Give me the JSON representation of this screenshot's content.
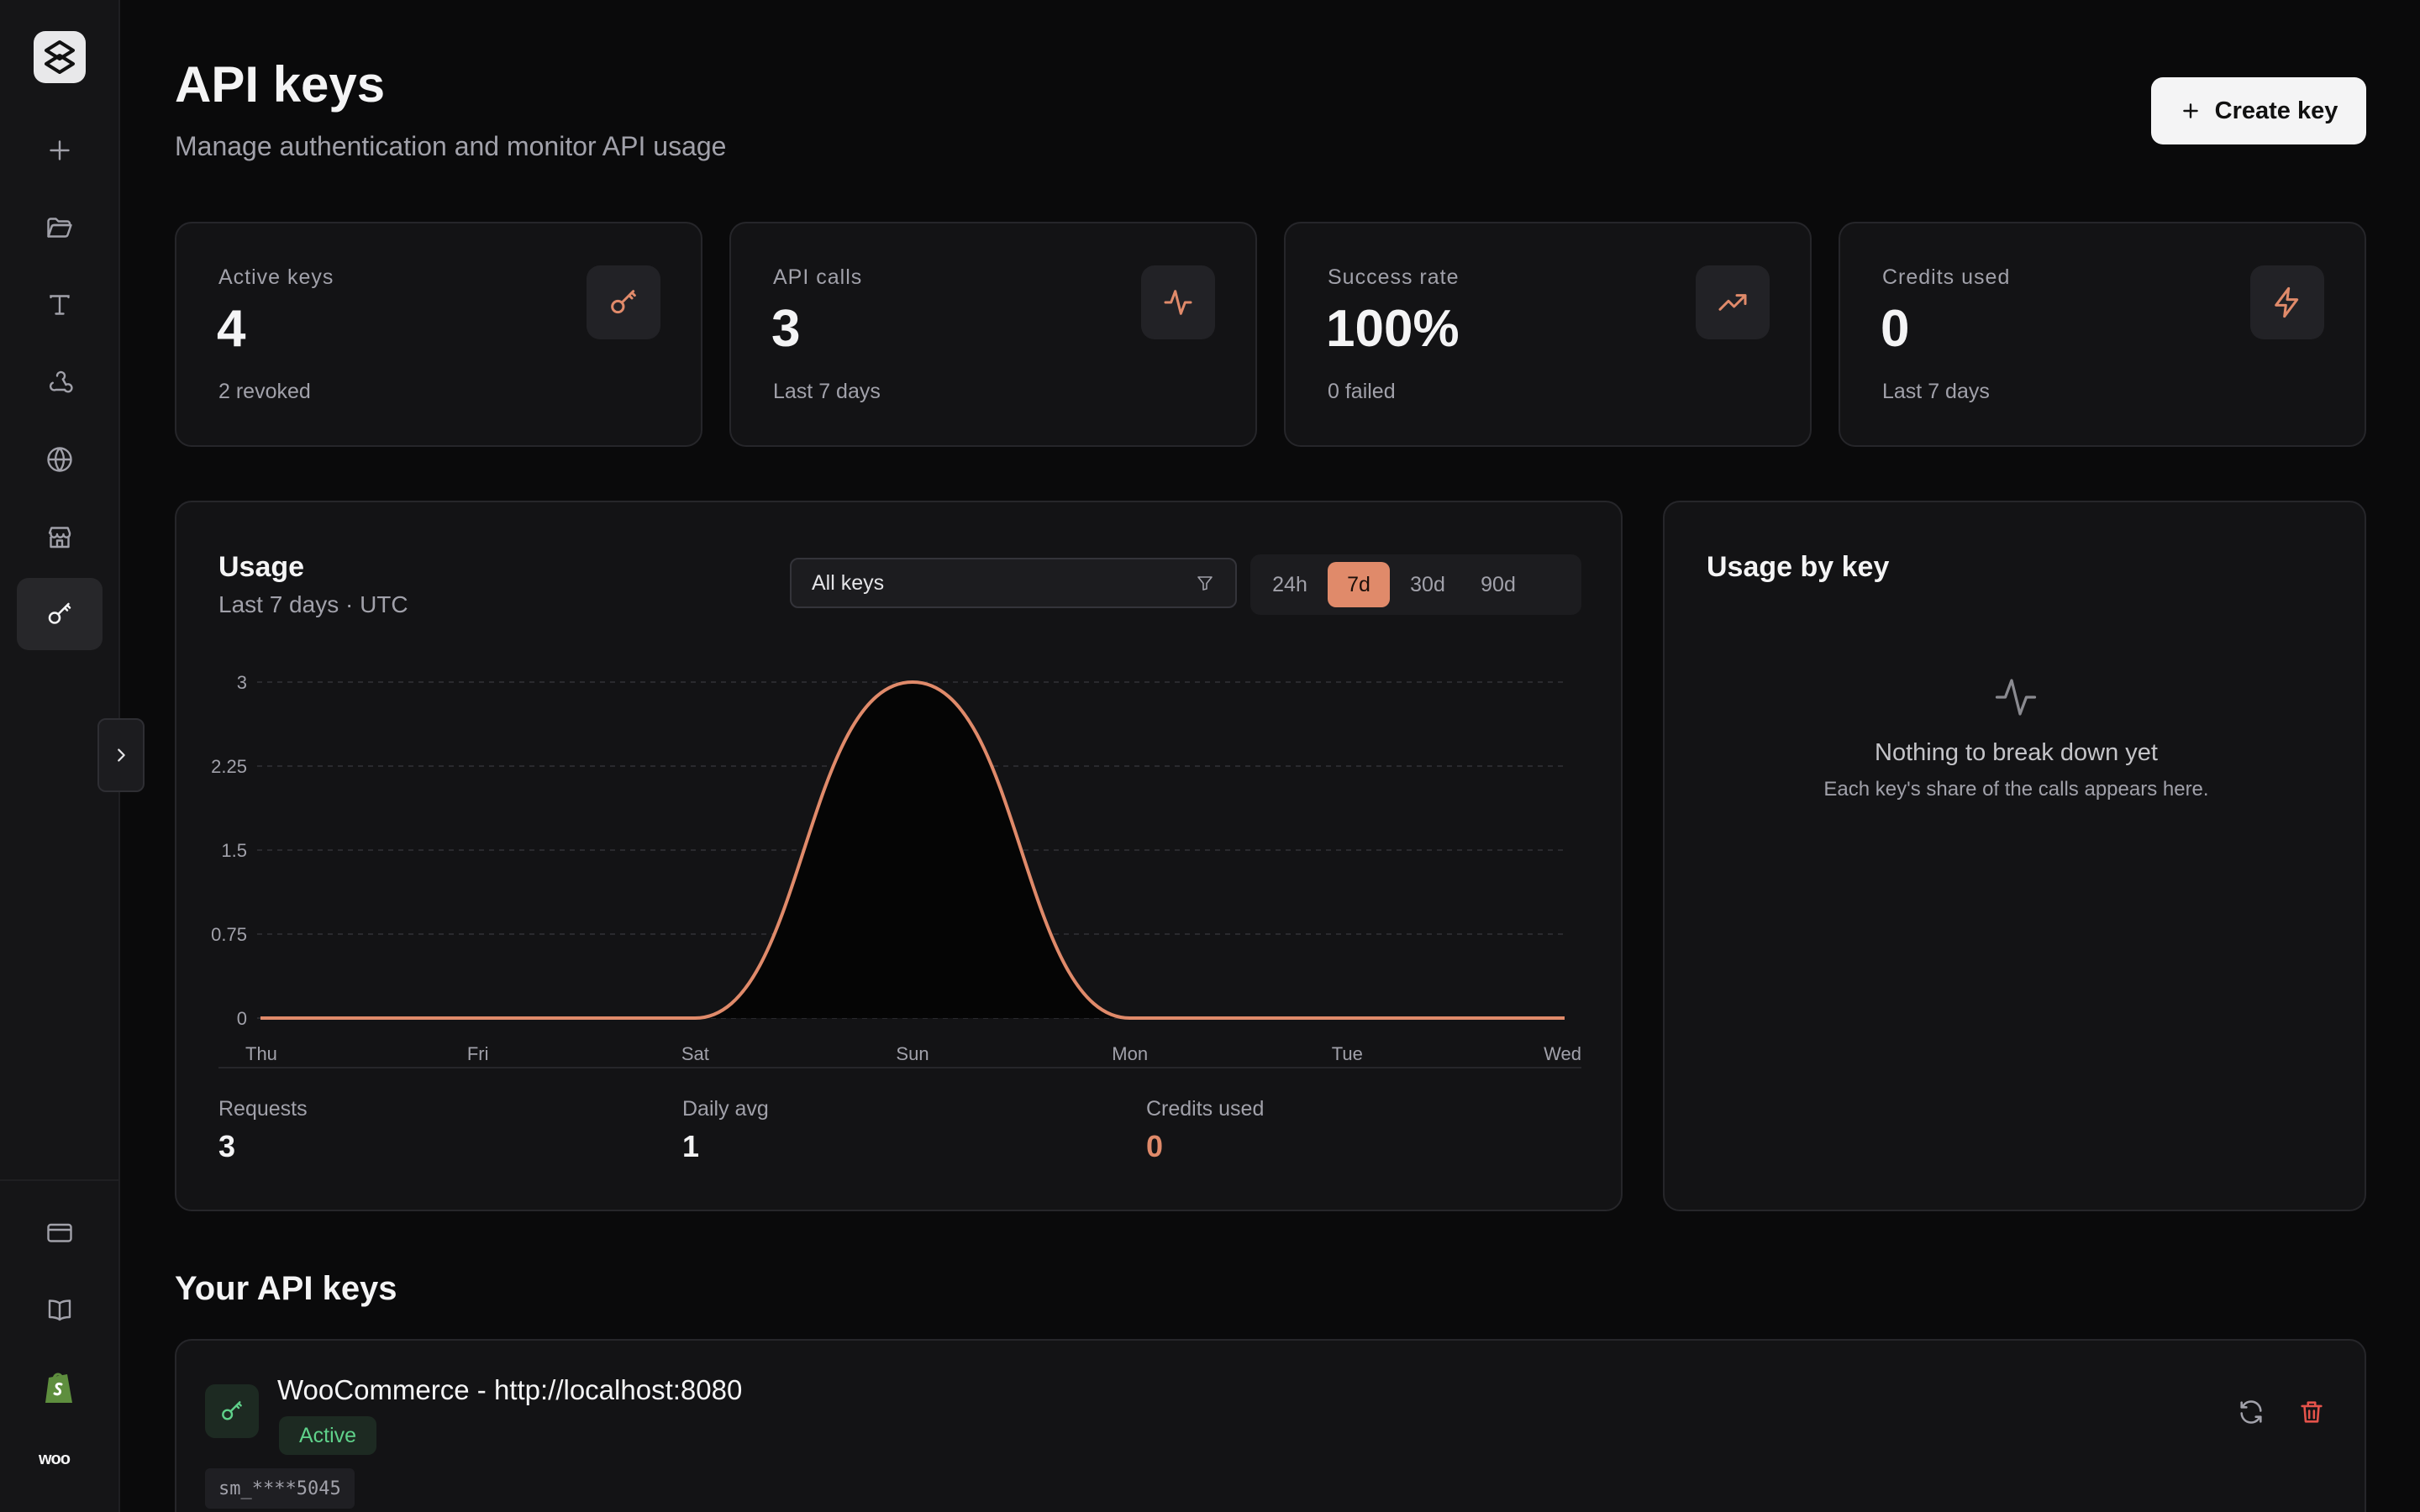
{
  "header": {
    "title": "API keys",
    "subtitle": "Manage authentication and monitor API usage",
    "create_button": "Create key"
  },
  "stats": [
    {
      "label": "Active keys",
      "value": "4",
      "note": "2 revoked",
      "icon": "key-icon"
    },
    {
      "label": "API calls",
      "value": "3",
      "note": "Last 7 days",
      "icon": "activity-icon"
    },
    {
      "label": "Success rate",
      "value": "100%",
      "note": "0 failed",
      "icon": "trending-up-icon"
    },
    {
      "label": "Credits used",
      "value": "0",
      "note": "Last 7 days",
      "icon": "lightning-icon"
    }
  ],
  "usage": {
    "title": "Usage",
    "subtitle": "Last 7 days · UTC",
    "filter_value": "All keys",
    "ranges": [
      "24h",
      "7d",
      "30d",
      "90d"
    ],
    "selected_range": "7d",
    "summary": {
      "requests_label": "Requests",
      "requests_value": "3",
      "daily_avg_label": "Daily avg",
      "daily_avg_value": "1",
      "credits_label": "Credits used",
      "credits_value": "0"
    }
  },
  "chart_data": {
    "type": "area",
    "categories": [
      "Thu",
      "Fri",
      "Sat",
      "Sun",
      "Mon",
      "Tue",
      "Wed"
    ],
    "values": [
      0,
      0,
      0,
      3,
      0,
      0,
      0
    ],
    "y_ticks": [
      "0",
      "0.75",
      "1.5",
      "2.25",
      "3"
    ],
    "ylim": [
      0,
      3
    ],
    "grid": true,
    "line_color": "#e08a6a"
  },
  "by_key": {
    "title": "Usage by key",
    "empty_title": "Nothing to break down yet",
    "empty_subtitle": "Each key's share of the calls appears here."
  },
  "keys": {
    "heading": "Your API keys",
    "items": [
      {
        "name": "WooCommerce - http://localhost:8080",
        "status": "Active",
        "masked": "sm_****5045"
      }
    ]
  },
  "sidebar": {
    "brand_text": "woo",
    "items": [
      "plus-icon",
      "folder-icon",
      "text-icon",
      "webhook-icon",
      "globe-icon",
      "store-icon",
      "key-icon"
    ],
    "active_item": "key-icon",
    "bottom_items": [
      "credit-card-icon",
      "book-icon",
      "shopify-icon",
      "woo-icon"
    ]
  },
  "colors": {
    "accent": "#e08a6a",
    "success": "#5fd18a",
    "danger": "#e5534b"
  }
}
